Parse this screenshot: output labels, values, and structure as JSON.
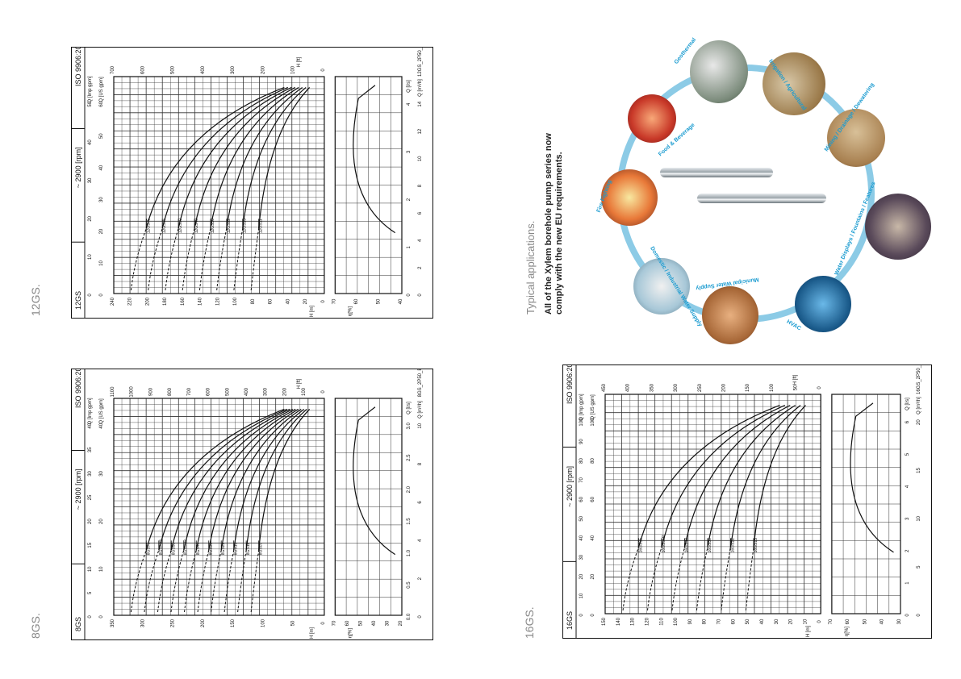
{
  "labels": {
    "g12": "12GS.",
    "g8": "8GS.",
    "g16": "16GS.",
    "typical": "Typical applications.",
    "headline_1": "All of the Xylem borehole pump series now",
    "headline_2": "comply with the new EU requirements."
  },
  "panels": [
    {
      "id": "p12",
      "header": {
        "model": "12GS",
        "speed": "~ 2900 [rpm]",
        "standard": "ISO 9906:2012 - Grade 3B"
      },
      "code": "12GS_2P50_A_CH",
      "q_l_s_ticks": [
        "0",
        "1",
        "2",
        "3",
        "4"
      ],
      "q_m3h_ticks": [
        "0",
        "2",
        "4",
        "6",
        "8",
        "10",
        "12",
        "14"
      ],
      "q_imp_ticks": [
        "0",
        "10",
        "20",
        "30",
        "40",
        "50"
      ],
      "q_us_ticks": [
        "0",
        "10",
        "20",
        "30",
        "40",
        "50",
        "60"
      ],
      "h_m_ticks": [
        "0",
        "20",
        "40",
        "60",
        "80",
        "100",
        "120",
        "140",
        "160",
        "180",
        "200",
        "220",
        "240"
      ],
      "h_ft_ticks": [
        "0",
        "100",
        "200",
        "300",
        "400",
        "500",
        "600",
        "700"
      ],
      "eta_ticks": [
        "70",
        "60",
        "50",
        "40"
      ],
      "axis": {
        "h_m": "H [m]",
        "h_ft": "H [ft]",
        "eta": "η[%]",
        "q_ls": "Q [l/s]",
        "q_m3h": "Q [m³/h]",
        "q_us": "Q [US gpm]",
        "q_imp": "Q [Imp gpm]"
      },
      "curves": [
        "12GS75",
        "12GS55",
        "12GS50",
        "12GS40",
        "12GS30",
        "12GS22",
        "12GS15",
        "12GS11"
      ]
    },
    {
      "id": "p8",
      "header": {
        "model": "8GS",
        "speed": "~ 2900 [rpm]",
        "standard": "ISO 9906:2012 - Grade 3B"
      },
      "code": "8GS_2P50_B_CH",
      "q_l_s_ticks": [
        "0.0",
        "0.5",
        "1.0",
        "1.5",
        "2.0",
        "2.5",
        "3.0"
      ],
      "q_m3h_ticks": [
        "0",
        "2",
        "4",
        "6",
        "8",
        "10"
      ],
      "q_imp_ticks": [
        "0",
        "5",
        "10",
        "15",
        "20",
        "25",
        "30",
        "35",
        "40"
      ],
      "q_us_ticks": [
        "0",
        "10",
        "20",
        "30",
        "40"
      ],
      "h_m_ticks": [
        "0",
        "50",
        "100",
        "150",
        "200",
        "250",
        "300",
        "350"
      ],
      "h_ft_ticks": [
        "0",
        "100",
        "200",
        "300",
        "400",
        "500",
        "600",
        "700",
        "800",
        "900",
        "1000",
        "1100"
      ],
      "eta_ticks": [
        "70",
        "60",
        "50",
        "40",
        "30",
        "20"
      ],
      "axis": {
        "h_m": "H [m]",
        "h_ft": "H [ft]",
        "eta": "η[%]",
        "q_ls": "Q [l/s]",
        "q_m3h": "Q [m³/h]",
        "q_us": "Q [US gpm]",
        "q_imp": "Q [Imp gpm]"
      },
      "curves": [
        "8GS75",
        "8GS75R",
        "8GS55",
        "8GS55R",
        "8GS40",
        "8GS30",
        "8GS22",
        "8GS15",
        "8GS11",
        "8GS07"
      ]
    },
    {
      "id": "p16",
      "header": {
        "model": "16GS",
        "speed": "~ 2900 [rpm]",
        "standard": "ISO 9906:2012 - Grade 3B"
      },
      "code": "16GS_2P50_A_CH",
      "q_l_s_ticks": [
        "0",
        "1",
        "2",
        "3",
        "4",
        "5",
        "6"
      ],
      "q_m3h_ticks": [
        "0",
        "5",
        "10",
        "15",
        "20"
      ],
      "q_imp_ticks": [
        "0",
        "10",
        "20",
        "30",
        "40",
        "50",
        "60",
        "70",
        "80",
        "90",
        "100"
      ],
      "q_us_ticks": [
        "0",
        "20",
        "40",
        "60",
        "80",
        "100"
      ],
      "h_m_ticks": [
        "0",
        "10",
        "20",
        "30",
        "40",
        "50",
        "60",
        "70",
        "80",
        "90",
        "100",
        "110",
        "120",
        "130",
        "140",
        "150"
      ],
      "h_ft_ticks": [
        "0",
        "50",
        "100",
        "150",
        "200",
        "250",
        "300",
        "350",
        "400",
        "450"
      ],
      "eta_ticks": [
        "70",
        "60",
        "50",
        "40",
        "30"
      ],
      "axis": {
        "h_m": "H [m]",
        "h_ft": "H [ft]",
        "eta": "η[%]",
        "q_ls": "Q [l/s]",
        "q_m3h": "Q [m³/h]",
        "q_us": "Q [US gpm]",
        "q_imp": "Q [Imp gpm]"
      },
      "curves": [
        "16GS55",
        "16GS55R",
        "16GS40",
        "16GS30",
        "16GS22",
        "16GS15"
      ]
    }
  ],
  "applications": [
    "Geothermal",
    "Irrigation / Agricultural",
    "Mining / Drainage / Dewatering",
    "Water Displays / Fountains / Features",
    "HVAC",
    "Municipal Water Supply",
    "Domestic / Industrial Water Supply",
    "Fire Fighting",
    "Food & Beverage"
  ],
  "colors": {
    "accent": "#1a9bd0",
    "ring": "#8ccbe6"
  }
}
